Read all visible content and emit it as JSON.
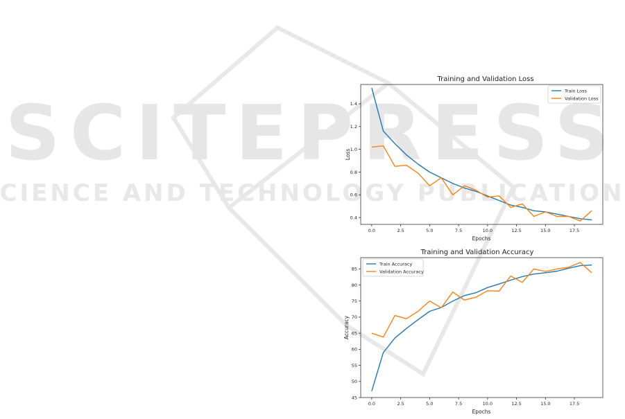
{
  "watermark": {
    "line1": "SCITEPRESS",
    "line2": "SCIENCE AND TECHNOLOGY PUBLICATIONS"
  },
  "colors": {
    "train": "#1f77b4",
    "validation": "#ff7f0e",
    "watermark": "#e6e6e6"
  },
  "chart_data": [
    {
      "type": "line",
      "title": "Training and Validation Loss",
      "xlabel": "Epochs",
      "ylabel": "Loss",
      "xlim": [
        -0.95,
        19.95
      ],
      "ylim": [
        0.34,
        1.57
      ],
      "xticks": [
        0,
        2.5,
        5,
        7.5,
        10,
        12.5,
        15,
        17.5
      ],
      "xtick_labels": [
        "0.0",
        "2.5",
        "5.0",
        "7.5",
        "10.0",
        "12.5",
        "15.0",
        "17.5"
      ],
      "yticks": [
        0.4,
        0.6,
        0.8,
        1.0,
        1.2,
        1.4
      ],
      "ytick_labels": [
        "0.4",
        "0.6",
        "0.8",
        "1.0",
        "1.2",
        "1.4"
      ],
      "legend_position": "top-right",
      "x": [
        0,
        1,
        2,
        3,
        4,
        5,
        6,
        7,
        8,
        9,
        10,
        11,
        12,
        13,
        14,
        15,
        16,
        17,
        18,
        19
      ],
      "series": [
        {
          "name": "Train Loss",
          "color": "#1f77b4",
          "values": [
            1.54,
            1.16,
            1.05,
            0.95,
            0.87,
            0.8,
            0.75,
            0.7,
            0.66,
            0.63,
            0.59,
            0.55,
            0.51,
            0.49,
            0.46,
            0.45,
            0.43,
            0.41,
            0.39,
            0.38
          ]
        },
        {
          "name": "Validation Loss",
          "color": "#ff7f0e",
          "values": [
            1.02,
            1.03,
            0.85,
            0.86,
            0.79,
            0.68,
            0.75,
            0.6,
            0.68,
            0.64,
            0.58,
            0.59,
            0.49,
            0.52,
            0.41,
            0.45,
            0.41,
            0.41,
            0.37,
            0.46
          ]
        }
      ]
    },
    {
      "type": "line",
      "title": "Training and Validation Accuracy",
      "xlabel": "Epochs",
      "ylabel": "Accuracy",
      "xlim": [
        -0.95,
        19.95
      ],
      "ylim": [
        45,
        88.5
      ],
      "xticks": [
        0,
        2.5,
        5,
        7.5,
        10,
        12.5,
        15,
        17.5
      ],
      "xtick_labels": [
        "0.0",
        "2.5",
        "5.0",
        "7.5",
        "10.0",
        "12.5",
        "15.0",
        "17.5"
      ],
      "yticks": [
        45,
        50,
        55,
        60,
        65,
        70,
        75,
        80,
        85
      ],
      "ytick_labels": [
        "45",
        "50",
        "55",
        "60",
        "65",
        "70",
        "75",
        "80",
        "85"
      ],
      "legend_position": "top-left",
      "x": [
        0,
        1,
        2,
        3,
        4,
        5,
        6,
        7,
        8,
        9,
        10,
        11,
        12,
        13,
        14,
        15,
        16,
        17,
        18,
        19
      ],
      "series": [
        {
          "name": "Train Accuracy",
          "color": "#1f77b4",
          "values": [
            47.0,
            59.0,
            63.5,
            66.5,
            69.2,
            71.8,
            73.0,
            75.0,
            76.7,
            77.6,
            79.2,
            80.3,
            81.5,
            82.6,
            83.4,
            83.8,
            84.3,
            85.2,
            86.0,
            86.2
          ]
        },
        {
          "name": "Validation Accuracy",
          "color": "#ff7f0e",
          "values": [
            65.0,
            63.8,
            70.5,
            69.5,
            71.8,
            75.0,
            72.9,
            77.8,
            75.3,
            76.2,
            78.2,
            78.1,
            82.8,
            80.8,
            85.0,
            84.2,
            85.0,
            85.5,
            87.0,
            83.8
          ]
        }
      ]
    }
  ]
}
